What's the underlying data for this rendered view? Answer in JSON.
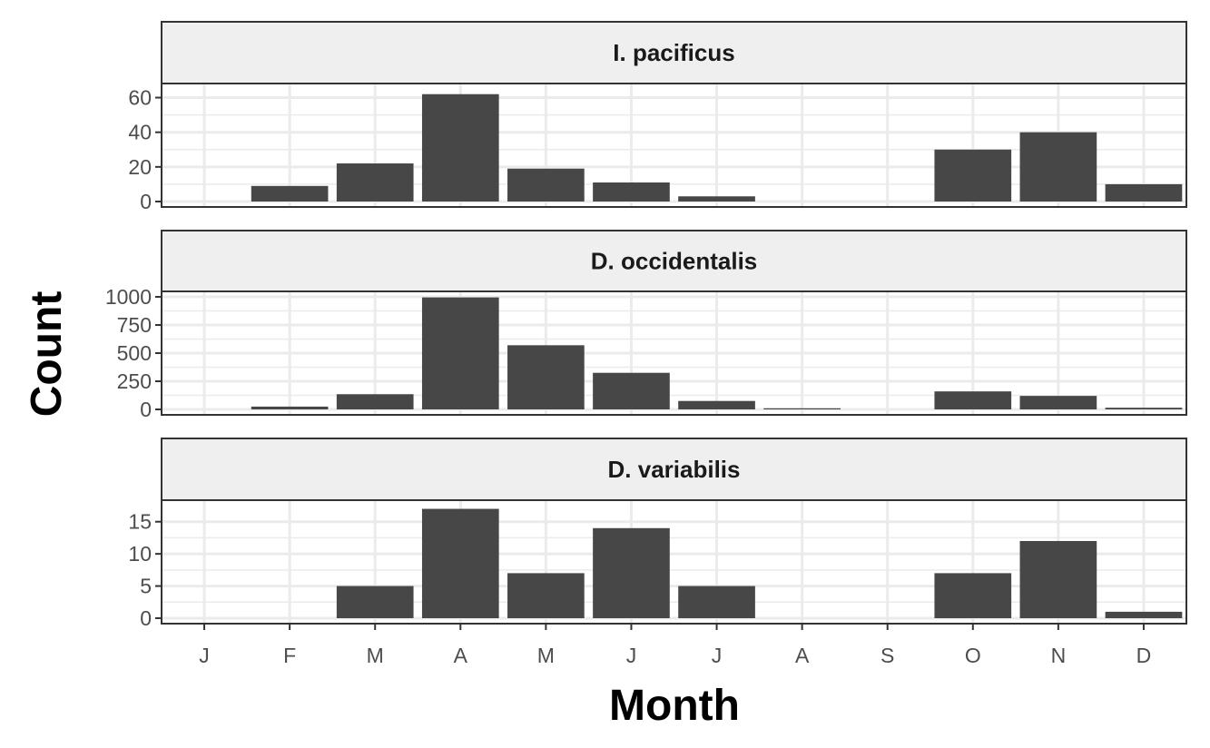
{
  "chart_data": {
    "type": "bar",
    "facet_layout": "stacked vertical panels with shared x axis",
    "xlabel": "Month",
    "ylabel": "Count",
    "categories": [
      "J",
      "F",
      "M",
      "A",
      "M",
      "J",
      "J",
      "A",
      "S",
      "O",
      "N",
      "D"
    ],
    "grid": true,
    "legend": "none",
    "colors": {
      "bar": "#474747",
      "grid": "#ebebeb",
      "strip_background": "#efefef",
      "panel_border": "#333333",
      "tick_text": "#4d4d4d"
    },
    "panels": [
      {
        "title": "I. pacificus",
        "ylim": [
          0,
          65
        ],
        "yticks": [
          0,
          20,
          40,
          60
        ],
        "values": [
          0,
          9,
          22,
          62,
          19,
          11,
          3,
          0,
          0,
          30,
          40,
          10
        ]
      },
      {
        "title": "D. occidentalis",
        "ylim": [
          0,
          1000
        ],
        "yticks": [
          0,
          250,
          500,
          750,
          1000
        ],
        "values": [
          0,
          25,
          135,
          995,
          570,
          325,
          75,
          10,
          0,
          160,
          120,
          15
        ]
      },
      {
        "title": "D. variabilis",
        "ylim": [
          0,
          17.5
        ],
        "yticks": [
          0,
          5,
          10,
          15
        ],
        "values": [
          0,
          0,
          5,
          17,
          7,
          14,
          5,
          0,
          0,
          7,
          12,
          1
        ]
      }
    ]
  }
}
